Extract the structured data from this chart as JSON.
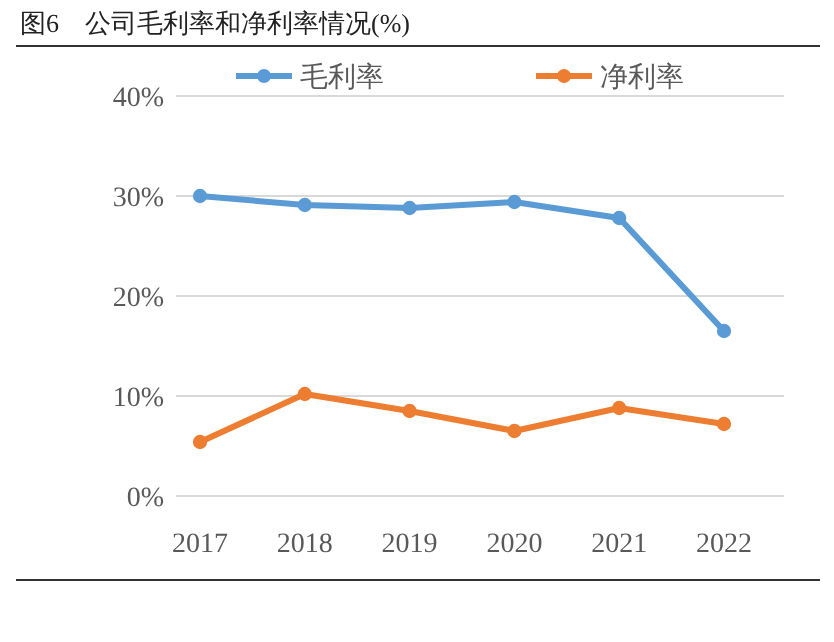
{
  "chart_data": {
    "type": "line",
    "title": "图6　公司毛利率和净利率情况(%)",
    "categories": [
      "2017",
      "2018",
      "2019",
      "2020",
      "2021",
      "2022"
    ],
    "series": [
      {
        "name": "毛利率",
        "color": "#5b9bd5",
        "values": [
          30.0,
          29.1,
          28.8,
          29.4,
          27.8,
          16.5
        ]
      },
      {
        "name": "净利率",
        "color": "#ed7d31",
        "values": [
          5.4,
          10.2,
          8.5,
          6.5,
          8.8,
          7.2
        ]
      }
    ],
    "ylim": [
      0,
      40
    ],
    "yticks": [
      {
        "value": 0,
        "label": "0%"
      },
      {
        "value": 10,
        "label": "10%"
      },
      {
        "value": 20,
        "label": "20%"
      },
      {
        "value": 30,
        "label": "30%"
      },
      {
        "value": 40,
        "label": "40%"
      }
    ],
    "grid": "y",
    "legend": "top",
    "marker": "circle",
    "line_style": "solid"
  }
}
